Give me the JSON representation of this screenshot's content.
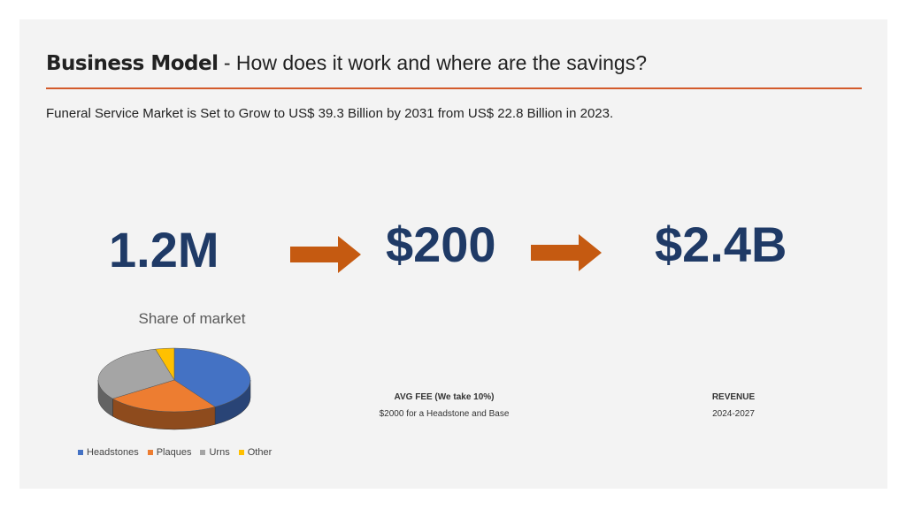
{
  "header": {
    "title_bold": "Business Model",
    "title_rest": " - How does it work and where are the savings?",
    "subtitle": "Funeral Service Market is Set to Grow to US$ 39.3 Billion by 2031 from US$ 22.8 Billion in 2023."
  },
  "metrics": {
    "first": "1.2M",
    "second": "$200",
    "third": "$2.4B"
  },
  "captions": {
    "fee_label": "AVG FEE (We take 10%)",
    "fee_sub": "$2000 for a Headstone and Base",
    "revenue_label": "REVENUE",
    "revenue_sub": "2024-2027"
  },
  "colors": {
    "accent_rule": "#d35a2b",
    "arrow": "#c55a11",
    "metric_text": "#1f3a66"
  },
  "chart_data": {
    "type": "pie",
    "title": "Share of market",
    "categories": [
      "Headstones",
      "Plaques",
      "Urns",
      "Other"
    ],
    "values": [
      41,
      24,
      31,
      4
    ],
    "colors": [
      "#4472c4",
      "#ed7d31",
      "#a5a5a5",
      "#ffc000"
    ],
    "style": "3d",
    "legend_position": "bottom"
  }
}
